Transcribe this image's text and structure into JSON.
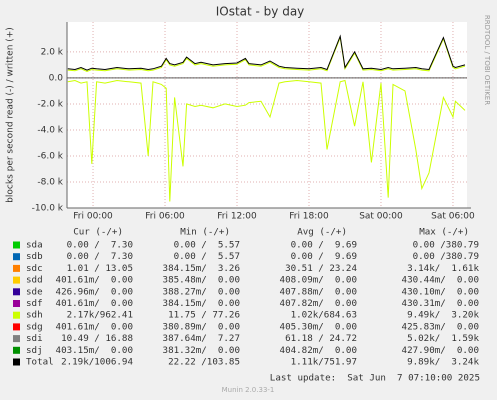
{
  "chart_data": {
    "type": "line",
    "title": "IOstat - by day",
    "y_label": "blocks per second read (-) / written (+)",
    "side_label": "RRDTOOL / TOBI OETIKER",
    "xlim": [
      -2.17,
      31.17
    ],
    "xticks": [
      {
        "value": 0,
        "label": "Fri 00:00"
      },
      {
        "value": 6,
        "label": "Fri 06:00"
      },
      {
        "value": 12,
        "label": "Fri 12:00"
      },
      {
        "value": 18,
        "label": "Fri 18:00"
      },
      {
        "value": 24,
        "label": "Sat 00:00"
      },
      {
        "value": 30,
        "label": "Sat 06:00"
      }
    ],
    "ylim": [
      -10000,
      4300
    ],
    "yticks": [
      {
        "value": 2000,
        "label": "2.0 k"
      },
      {
        "value": 0,
        "label": "0.0"
      },
      {
        "value": -2000,
        "label": "-2.0 k"
      },
      {
        "value": -4000,
        "label": "-4.0 k"
      },
      {
        "value": -6000,
        "label": "-6.0 k"
      },
      {
        "value": -8000,
        "label": "-8.0 k"
      },
      {
        "value": -10000,
        "label": "-10.0 k"
      }
    ],
    "grid": true,
    "columns": [
      "Cur (-/+)",
      "Min (-/+)",
      "Avg (-/+)",
      "Max (-/+)"
    ],
    "x": [
      -2.1,
      -1.5,
      -1,
      -0.5,
      -0.1,
      0.3,
      1,
      2,
      3,
      4,
      4.6,
      5,
      5.7,
      6.1,
      6.4,
      6.8,
      7.5,
      7.8,
      8.5,
      9,
      10,
      11,
      12,
      12.7,
      13,
      14,
      14.75,
      15.5,
      16,
      17,
      18,
      19,
      19.5,
      20.6,
      21,
      21.8,
      22.5,
      23.2,
      24,
      24.6,
      25,
      26,
      26.9,
      27.4,
      28,
      29.2,
      30,
      30.2,
      31
    ],
    "series": [
      {
        "name": "sda",
        "color": "#00cc00",
        "stats": [
          "0.00 /  7.30",
          "0.00 /  5.57",
          "0.00 /  9.69",
          "0.00 /380.79"
        ]
      },
      {
        "name": "sdb",
        "color": "#0066b3",
        "stats": [
          "0.00 /  7.30",
          "0.00 /  5.57",
          "0.00 /  9.69",
          "0.00 /380.79"
        ]
      },
      {
        "name": "sdc",
        "color": "#ff8000",
        "stats": [
          "1.01 / 13.05",
          "384.15m/  3.26",
          "30.51 / 23.24",
          "3.14k/  1.61k"
        ]
      },
      {
        "name": "sdd",
        "color": "#ffcc00",
        "stats": [
          "401.61m/  0.00",
          "385.48m/  0.00",
          "408.09m/  0.00",
          "430.44m/  0.00"
        ]
      },
      {
        "name": "sde",
        "color": "#330099",
        "stats": [
          "426.96m/  0.00",
          "388.27m/  0.00",
          "407.88m/  0.00",
          "430.10m/  0.00"
        ]
      },
      {
        "name": "sdf",
        "color": "#990099",
        "stats": [
          "401.61m/  0.00",
          "384.15m/  0.00",
          "407.82m/  0.00",
          "430.31m/  0.00"
        ]
      },
      {
        "name": "sdh",
        "color": "#ccff00",
        "stats": [
          "2.17k/962.41",
          "11.75 / 77.26",
          "1.02k/684.63",
          "9.49k/  3.20k"
        ],
        "values": [
          600,
          550,
          700,
          500,
          650,
          600,
          550,
          700,
          600,
          650,
          550,
          600,
          800,
          1400,
          1000,
          900,
          1100,
          1500,
          1000,
          1100,
          900,
          1000,
          1050,
          1400,
          1000,
          900,
          1200,
          800,
          700,
          650,
          600,
          700,
          550,
          3100,
          700,
          1900,
          600,
          650,
          550,
          700,
          600,
          650,
          700,
          600,
          550,
          3000,
          800,
          700,
          900
        ],
        "read_values": [
          -300,
          -200,
          -400,
          -300,
          -6600,
          -300,
          -400,
          -200,
          -300,
          -400,
          -6000,
          -300,
          -500,
          -800,
          -9500,
          -1500,
          -6800,
          -2000,
          -2200,
          -2100,
          -2300,
          -2000,
          -2200,
          -2100,
          -1900,
          -1800,
          -3000,
          -400,
          -300,
          -200,
          -300,
          -400,
          -5500,
          -300,
          -200,
          -3700,
          -300,
          -6500,
          -400,
          -9200,
          -500,
          -1000,
          -5500,
          -8500,
          -7300,
          -1500,
          -3000,
          -1800,
          -2500
        ]
      },
      {
        "name": "sdg",
        "color": "#ff0000",
        "stats": [
          "401.61m/  0.00",
          "380.89m/  0.00",
          "405.30m/  0.00",
          "425.83m/  0.00"
        ]
      },
      {
        "name": "sdi",
        "color": "#808080",
        "stats": [
          "10.49 / 16.88",
          "387.64m/  7.27",
          "61.18 / 24.72",
          "5.02k/  1.59k"
        ]
      },
      {
        "name": "sdj",
        "color": "#008f00",
        "stats": [
          "403.15m/  0.00",
          "381.32m/  0.00",
          "404.82m/  0.00",
          "427.90m/  0.00"
        ]
      },
      {
        "name": "Total",
        "color": "#000000",
        "stats": [
          "2.19k/1006.94",
          "22.22 /103.85",
          "1.11k/751.97",
          "9.89k/  3.24k"
        ],
        "values": [
          700,
          650,
          800,
          600,
          750,
          700,
          650,
          800,
          700,
          750,
          650,
          700,
          900,
          1500,
          1100,
          1000,
          1200,
          1600,
          1100,
          1200,
          1000,
          1100,
          1150,
          1500,
          1100,
          1000,
          1300,
          900,
          800,
          750,
          700,
          800,
          650,
          3200,
          800,
          2000,
          700,
          750,
          650,
          800,
          700,
          750,
          800,
          700,
          650,
          3100,
          900,
          800,
          1000
        ]
      }
    ],
    "last_update": "Last update:  Sat Jun  7 07:10:00 2025",
    "footer": "Munin 2.0.33-1"
  }
}
